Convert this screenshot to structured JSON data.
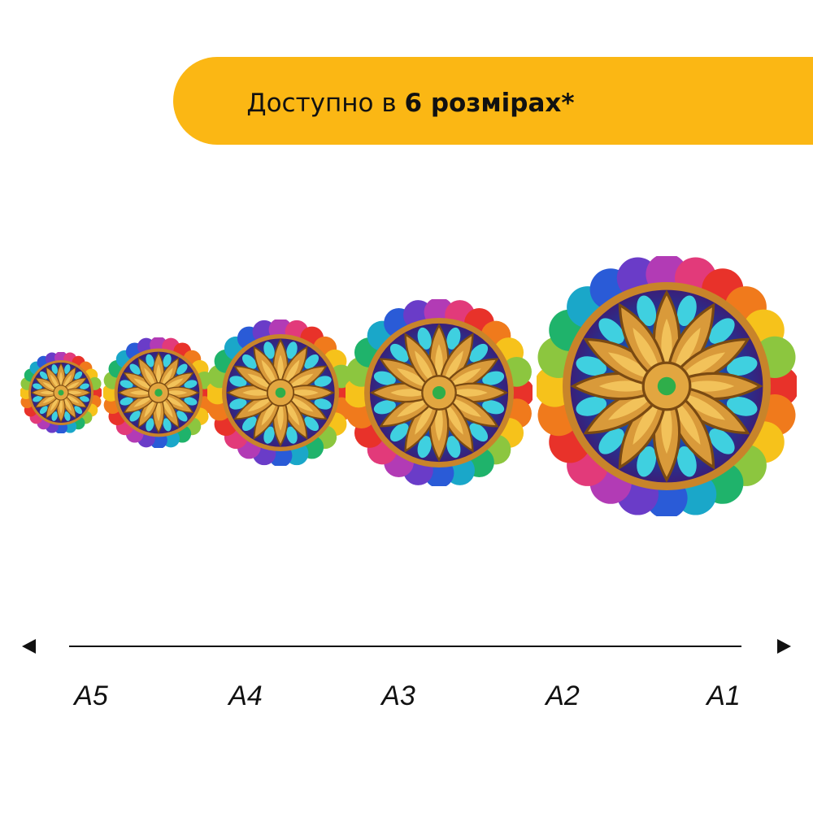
{
  "banner": {
    "text": "Доступно в",
    "text_bold": "6 розмірах*"
  },
  "sizes": [
    "A5",
    "A4",
    "A3",
    "A2",
    "A1"
  ]
}
